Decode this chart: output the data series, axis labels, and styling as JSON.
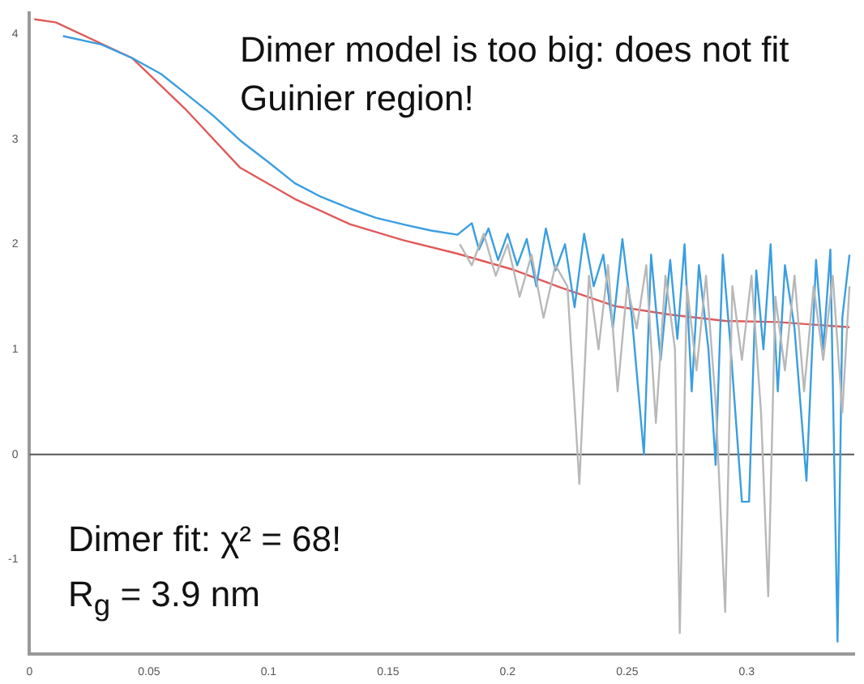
{
  "chart_data": {
    "type": "line",
    "xlim": [
      0,
      0.345
    ],
    "ylim": [
      -1.9,
      4.2
    ],
    "xticks": [
      0,
      0.05,
      0.1,
      0.15,
      0.2,
      0.25,
      0.3
    ],
    "yticks": [
      -1,
      0,
      1,
      2,
      3,
      4
    ],
    "grid": false,
    "legend": false,
    "marker": "none",
    "line_style": "solid",
    "ref_lines": [
      {
        "axis": "y",
        "value": 0,
        "color": "#555555"
      }
    ],
    "annotations": [
      "Dimer model is too big: does not fit Guinier region!",
      "Dimer fit: χ² = 68!",
      "R$_{g}$ = 3.9 nm"
    ],
    "series": [
      {
        "color": "#b8b8b8",
        "x": [
          0.18,
          0.185,
          0.19,
          0.195,
          0.2,
          0.205,
          0.21,
          0.215,
          0.22,
          0.225,
          0.23,
          0.234,
          0.238,
          0.242,
          0.246,
          0.25,
          0.254,
          0.258,
          0.262,
          0.266,
          0.27,
          0.272,
          0.275,
          0.279,
          0.283,
          0.287,
          0.291,
          0.294,
          0.298,
          0.302,
          0.306,
          0.309,
          0.312,
          0.316,
          0.32,
          0.324,
          0.328,
          0.332,
          0.336,
          0.34,
          0.343
        ],
        "values": [
          2.0,
          1.8,
          2.1,
          1.7,
          2.0,
          1.5,
          1.9,
          1.3,
          1.8,
          1.6,
          -0.28,
          1.7,
          1.0,
          1.8,
          0.6,
          1.6,
          1.2,
          1.8,
          0.3,
          1.7,
          1.0,
          -1.7,
          1.6,
          0.8,
          1.7,
          0.5,
          -1.5,
          1.6,
          0.9,
          1.7,
          0.4,
          -1.35,
          1.5,
          0.8,
          1.7,
          0.6,
          1.6,
          0.9,
          1.7,
          0.4,
          1.6
        ]
      },
      {
        "color": "#3a9ee0",
        "x": [
          0.014,
          0.03,
          0.043,
          0.055,
          0.065,
          0.077,
          0.088,
          0.1,
          0.111,
          0.122,
          0.134,
          0.145,
          0.156,
          0.168,
          0.179,
          0.185,
          0.188,
          0.192,
          0.196,
          0.2,
          0.204,
          0.208,
          0.212,
          0.216,
          0.22,
          0.224,
          0.228,
          0.232,
          0.236,
          0.24,
          0.244,
          0.248,
          0.252,
          0.257,
          0.26,
          0.264,
          0.268,
          0.271,
          0.274,
          0.277,
          0.28,
          0.284,
          0.287,
          0.29,
          0.293,
          0.298,
          0.301,
          0.304,
          0.307,
          0.31,
          0.313,
          0.316,
          0.32,
          0.325,
          0.329,
          0.332,
          0.335,
          0.338,
          0.34,
          0.343
        ],
        "values": [
          3.98,
          3.9,
          3.77,
          3.62,
          3.44,
          3.22,
          2.99,
          2.78,
          2.58,
          2.45,
          2.34,
          2.25,
          2.19,
          2.13,
          2.09,
          2.2,
          1.95,
          2.15,
          1.85,
          2.1,
          1.8,
          2.05,
          1.6,
          2.15,
          1.75,
          2.0,
          1.4,
          2.1,
          1.6,
          1.9,
          1.2,
          2.05,
          1.3,
          0.0,
          1.9,
          0.9,
          1.85,
          1.1,
          2.0,
          0.6,
          1.8,
          1.0,
          -0.1,
          1.9,
          1.1,
          -0.45,
          -0.45,
          1.75,
          1.0,
          2.0,
          0.6,
          1.8,
          1.2,
          -0.25,
          1.85,
          1.0,
          1.95,
          -1.78,
          1.3,
          1.9
        ]
      },
      {
        "color": "#e05a5a",
        "x": [
          0.002,
          0.011,
          0.043,
          0.065,
          0.088,
          0.111,
          0.134,
          0.156,
          0.179,
          0.202,
          0.222,
          0.245,
          0.268,
          0.291,
          0.313,
          0.343
        ],
        "values": [
          4.14,
          4.11,
          3.77,
          3.29,
          2.73,
          2.43,
          2.19,
          2.04,
          1.91,
          1.76,
          1.59,
          1.41,
          1.33,
          1.27,
          1.26,
          1.21
        ]
      }
    ]
  }
}
